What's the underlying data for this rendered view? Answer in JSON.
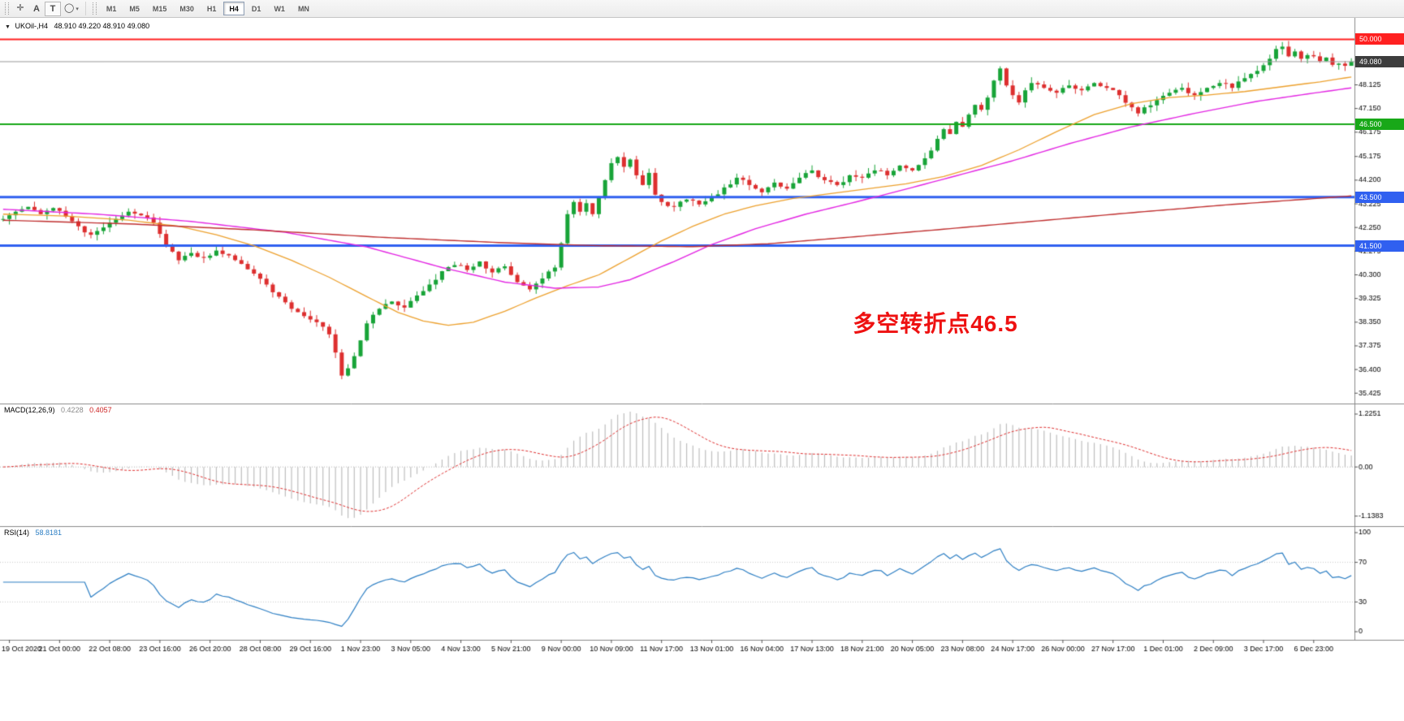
{
  "toolbar": {
    "icons": {
      "crosshair": "✛",
      "shape": "◯",
      "chevron": "▾"
    },
    "tools": {
      "a_label": "A",
      "t_label": "T"
    },
    "timeframes": [
      {
        "label": "M1",
        "active": false
      },
      {
        "label": "M5",
        "active": false
      },
      {
        "label": "M15",
        "active": false
      },
      {
        "label": "M30",
        "active": false
      },
      {
        "label": "H1",
        "active": false
      },
      {
        "label": "H4",
        "active": true
      },
      {
        "label": "D1",
        "active": false
      },
      {
        "label": "W1",
        "active": false
      },
      {
        "label": "MN",
        "active": false
      }
    ]
  },
  "chart": {
    "marker": "▼",
    "symbol": "UKOil-,H4",
    "ohlc_text": "48.910 49.220 48.910 49.080"
  },
  "chart_data": {
    "type": "candlestick",
    "symbol": "UKOil-",
    "timeframe": "H4",
    "bars": 216,
    "seed": 11,
    "noise": 0.09,
    "wick": 0.24,
    "candle_colors": {
      "up": "#18A438",
      "down": "#DD2F2F"
    },
    "x_tick_labels": [
      "19 Oct 2020",
      "21 Oct 00:00",
      "22 Oct 08:00",
      "23 Oct 16:00",
      "26 Oct 20:00",
      "28 Oct 08:00",
      "29 Oct 16:00",
      "1 Nov 23:00",
      "3 Nov 05:00",
      "4 Nov 13:00",
      "5 Nov 21:00",
      "9 Nov 00:00",
      "10 Nov 09:00",
      "11 Nov 17:00",
      "13 Nov 01:00",
      "16 Nov 04:00",
      "17 Nov 13:00",
      "18 Nov 21:00",
      "20 Nov 05:00",
      "23 Nov 08:00",
      "24 Nov 17:00",
      "26 Nov 00:00",
      "27 Nov 17:00",
      "1 Dec 01:00",
      "2 Dec 09:00",
      "3 Dec 17:00",
      "6 Dec 23:00"
    ],
    "x_tick_bars": [
      1,
      9,
      17,
      25,
      33,
      41,
      49,
      57,
      65,
      73,
      81,
      89,
      97,
      105,
      113,
      121,
      129,
      137,
      145,
      153,
      161,
      169,
      177,
      185,
      193,
      201,
      209
    ],
    "price_axis": {
      "min": 35.3,
      "max": 50.55,
      "ticks": [
        "48.125",
        "47.150",
        "46.175",
        "45.175",
        "44.200",
        "43.225",
        "42.250",
        "41.275",
        "40.300",
        "39.325",
        "38.350",
        "37.375",
        "36.400",
        "35.425"
      ]
    },
    "price_path_anchors": [
      [
        0,
        42.6
      ],
      [
        2,
        42.9
      ],
      [
        4,
        43.1
      ],
      [
        6,
        42.8
      ],
      [
        8,
        43.05
      ],
      [
        10,
        42.7
      ],
      [
        12,
        42.3
      ],
      [
        14,
        41.95
      ],
      [
        16,
        42.25
      ],
      [
        18,
        42.6
      ],
      [
        20,
        42.9
      ],
      [
        22,
        42.75
      ],
      [
        24,
        42.45
      ],
      [
        26,
        41.55
      ],
      [
        28,
        40.9
      ],
      [
        30,
        41.2
      ],
      [
        32,
        41.0
      ],
      [
        34,
        41.3
      ],
      [
        36,
        41.1
      ],
      [
        38,
        40.75
      ],
      [
        40,
        40.35
      ],
      [
        42,
        39.9
      ],
      [
        44,
        39.4
      ],
      [
        46,
        38.9
      ],
      [
        48,
        38.6
      ],
      [
        50,
        38.35
      ],
      [
        52,
        37.85
      ],
      [
        53,
        37.1
      ],
      [
        54,
        36.15
      ],
      [
        55,
        36.45
      ],
      [
        56,
        36.95
      ],
      [
        57,
        37.6
      ],
      [
        58,
        38.3
      ],
      [
        60,
        38.9
      ],
      [
        62,
        39.2
      ],
      [
        64,
        38.95
      ],
      [
        66,
        39.45
      ],
      [
        68,
        39.9
      ],
      [
        70,
        40.45
      ],
      [
        72,
        40.7
      ],
      [
        74,
        40.5
      ],
      [
        76,
        40.85
      ],
      [
        78,
        40.4
      ],
      [
        80,
        40.65
      ],
      [
        82,
        40.0
      ],
      [
        84,
        39.7
      ],
      [
        86,
        40.15
      ],
      [
        88,
        40.6
      ],
      [
        89,
        41.6
      ],
      [
        90,
        42.8
      ],
      [
        91,
        43.3
      ],
      [
        92,
        42.9
      ],
      [
        93,
        43.25
      ],
      [
        94,
        42.8
      ],
      [
        95,
        43.5
      ],
      [
        96,
        44.2
      ],
      [
        97,
        44.9
      ],
      [
        98,
        45.15
      ],
      [
        99,
        44.75
      ],
      [
        100,
        45.05
      ],
      [
        101,
        44.4
      ],
      [
        102,
        44.0
      ],
      [
        103,
        44.5
      ],
      [
        104,
        43.6
      ],
      [
        105,
        43.3
      ],
      [
        107,
        43.1
      ],
      [
        109,
        43.4
      ],
      [
        111,
        43.2
      ],
      [
        113,
        43.5
      ],
      [
        115,
        43.9
      ],
      [
        117,
        44.3
      ],
      [
        119,
        44.0
      ],
      [
        121,
        43.7
      ],
      [
        123,
        44.1
      ],
      [
        125,
        43.85
      ],
      [
        127,
        44.3
      ],
      [
        129,
        44.6
      ],
      [
        131,
        44.2
      ],
      [
        133,
        44.0
      ],
      [
        135,
        44.4
      ],
      [
        137,
        44.3
      ],
      [
        139,
        44.6
      ],
      [
        141,
        44.4
      ],
      [
        143,
        44.8
      ],
      [
        145,
        44.6
      ],
      [
        147,
        45.1
      ],
      [
        149,
        45.9
      ],
      [
        150,
        46.3
      ],
      [
        151,
        46.1
      ],
      [
        152,
        46.6
      ],
      [
        153,
        46.4
      ],
      [
        154,
        46.9
      ],
      [
        155,
        47.3
      ],
      [
        156,
        47.1
      ],
      [
        157,
        47.6
      ],
      [
        158,
        48.3
      ],
      [
        159,
        48.8
      ],
      [
        160,
        48.1
      ],
      [
        161,
        47.7
      ],
      [
        162,
        47.4
      ],
      [
        163,
        47.9
      ],
      [
        164,
        48.2
      ],
      [
        166,
        48.0
      ],
      [
        168,
        47.8
      ],
      [
        170,
        48.1
      ],
      [
        172,
        47.9
      ],
      [
        174,
        48.2
      ],
      [
        176,
        48.0
      ],
      [
        178,
        47.7
      ],
      [
        180,
        47.2
      ],
      [
        181,
        46.95
      ],
      [
        182,
        47.2
      ],
      [
        184,
        47.5
      ],
      [
        186,
        47.8
      ],
      [
        188,
        48.0
      ],
      [
        190,
        47.7
      ],
      [
        192,
        48.0
      ],
      [
        194,
        48.2
      ],
      [
        196,
        48.0
      ],
      [
        198,
        48.4
      ],
      [
        200,
        48.7
      ],
      [
        202,
        49.2
      ],
      [
        203,
        49.6
      ],
      [
        204,
        49.7
      ],
      [
        205,
        49.3
      ],
      [
        206,
        49.5
      ],
      [
        207,
        49.2
      ],
      [
        208,
        49.35
      ],
      [
        210,
        49.1
      ],
      [
        211,
        49.25
      ],
      [
        212,
        48.95
      ],
      [
        213,
        49.0
      ],
      [
        214,
        48.91
      ],
      [
        215,
        49.08
      ]
    ],
    "last_bar": {
      "open": 48.91,
      "high": 49.22,
      "low": 48.91,
      "close": 49.08
    },
    "current_price": {
      "value": 49.08,
      "label": "49.080",
      "line_color": "#9a9a9a",
      "badge_color": "#3d3d3d"
    },
    "hlines": [
      {
        "value": 50.0,
        "label": "50.000",
        "color": "#FF2020",
        "width": 2
      },
      {
        "value": 46.5,
        "label": "46.500",
        "color": "#18A818",
        "width": 2
      },
      {
        "value": 43.5,
        "label": "43.500",
        "color": "#3060F0",
        "width": 3
      },
      {
        "value": 41.5,
        "label": "41.500",
        "color": "#3060F0",
        "width": 3
      }
    ],
    "moving_averages": [
      {
        "name": "ma-fast-orange",
        "color": "#EDA12E",
        "width": 1.3,
        "anchors": [
          [
            0,
            42.8
          ],
          [
            10,
            42.72
          ],
          [
            20,
            42.55
          ],
          [
            28,
            42.3
          ],
          [
            34,
            41.95
          ],
          [
            40,
            41.5
          ],
          [
            46,
            40.9
          ],
          [
            52,
            40.2
          ],
          [
            58,
            39.4
          ],
          [
            63,
            38.75
          ],
          [
            67,
            38.4
          ],
          [
            71,
            38.22
          ],
          [
            75,
            38.35
          ],
          [
            80,
            38.8
          ],
          [
            85,
            39.35
          ],
          [
            90,
            39.85
          ],
          [
            95,
            40.3
          ],
          [
            100,
            41.0
          ],
          [
            105,
            41.7
          ],
          [
            110,
            42.3
          ],
          [
            115,
            42.8
          ],
          [
            120,
            43.15
          ],
          [
            126,
            43.45
          ],
          [
            132,
            43.65
          ],
          [
            138,
            43.85
          ],
          [
            144,
            44.05
          ],
          [
            150,
            44.35
          ],
          [
            156,
            44.8
          ],
          [
            162,
            45.45
          ],
          [
            168,
            46.2
          ],
          [
            174,
            46.9
          ],
          [
            180,
            47.35
          ],
          [
            186,
            47.6
          ],
          [
            192,
            47.7
          ],
          [
            198,
            47.85
          ],
          [
            204,
            48.05
          ],
          [
            210,
            48.25
          ],
          [
            215,
            48.45
          ]
        ]
      },
      {
        "name": "ma-mid-magenta",
        "color": "#E325E3",
        "width": 1.4,
        "anchors": [
          [
            0,
            43.0
          ],
          [
            15,
            42.8
          ],
          [
            30,
            42.5
          ],
          [
            45,
            42.05
          ],
          [
            58,
            41.45
          ],
          [
            70,
            40.6
          ],
          [
            80,
            40.0
          ],
          [
            88,
            39.75
          ],
          [
            95,
            39.8
          ],
          [
            100,
            40.1
          ],
          [
            107,
            40.85
          ],
          [
            113,
            41.55
          ],
          [
            120,
            42.2
          ],
          [
            128,
            42.8
          ],
          [
            136,
            43.3
          ],
          [
            145,
            43.9
          ],
          [
            153,
            44.45
          ],
          [
            161,
            45.0
          ],
          [
            170,
            45.7
          ],
          [
            180,
            46.4
          ],
          [
            190,
            46.95
          ],
          [
            200,
            47.45
          ],
          [
            208,
            47.75
          ],
          [
            215,
            48.0
          ]
        ]
      },
      {
        "name": "ma-slow-red",
        "color": "#C03030",
        "width": 1.4,
        "anchors": [
          [
            0,
            42.55
          ],
          [
            20,
            42.4
          ],
          [
            40,
            42.15
          ],
          [
            60,
            41.85
          ],
          [
            80,
            41.62
          ],
          [
            95,
            41.5
          ],
          [
            110,
            41.46
          ],
          [
            122,
            41.58
          ],
          [
            135,
            41.85
          ],
          [
            150,
            42.18
          ],
          [
            165,
            42.52
          ],
          [
            180,
            42.86
          ],
          [
            195,
            43.18
          ],
          [
            215,
            43.55
          ]
        ]
      }
    ],
    "annotation": {
      "text": "多空转折点46.5",
      "color": "#EE1111",
      "bar": 136,
      "price": 39.0
    },
    "macd": {
      "label": "MACD(12,26,9)",
      "value_main": "0.4228",
      "value_signal": "0.4057",
      "fast": 12,
      "slow": 26,
      "signal_period": 9,
      "hist_color": "#BEBEBE",
      "signal_color": "#E03030",
      "axis": {
        "max": 1.3,
        "min": -1.22,
        "ticks": [
          {
            "v": 1.2251,
            "label": "1.2251"
          },
          {
            "v": 0,
            "label": "0.00"
          },
          {
            "v": -1.1383,
            "label": "-1.1383"
          }
        ]
      }
    },
    "rsi": {
      "label": "RSI(14)",
      "value": "58.8181",
      "period": 14,
      "color": "#2D7FC4",
      "levels": [
        30,
        70
      ],
      "axis": {
        "max": 100,
        "min": 0,
        "ticks": [
          {
            "v": 100,
            "label": "100"
          },
          {
            "v": 70,
            "label": "70"
          },
          {
            "v": 30,
            "label": "30"
          },
          {
            "v": 0,
            "label": "0"
          }
        ]
      }
    }
  }
}
